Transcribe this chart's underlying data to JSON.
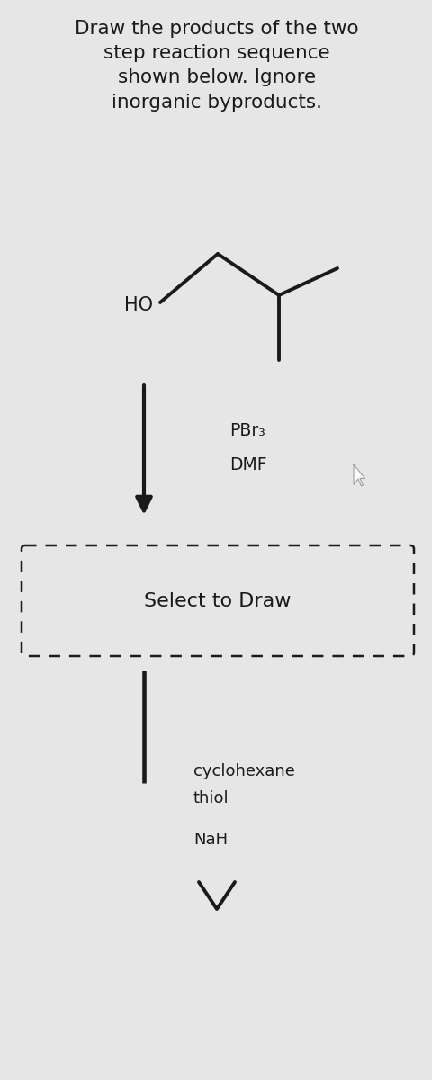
{
  "bg_color": "#e6e6e6",
  "title_text": "Draw the products of the two\nstep reaction sequence\nshown below. Ignore\ninorganic byproducts.",
  "title_fontsize": 15.5,
  "title_color": "#1a1a1a",
  "mol_HO_label": "HO",
  "reagent1_line1": "PBr₃",
  "reagent1_line2": "DMF",
  "select_to_draw": "Select to Draw",
  "reagent2_line1": "cyclohexane",
  "reagent2_line2": "thiol",
  "reagent2_line3": "NaH",
  "line_color": "#1a1a1a",
  "line_width": 2.8,
  "cursor_color": "#aaaaaa"
}
